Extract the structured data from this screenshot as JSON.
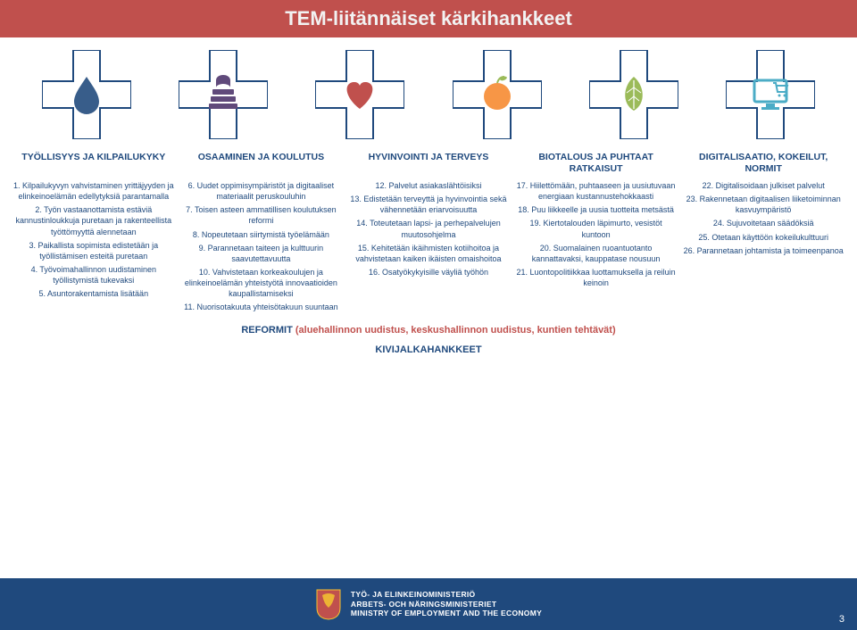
{
  "title": "TEM-liitännäiset kärkihankkeet",
  "colors": {
    "titlebar": "#c0504d",
    "footer": "#1F497D",
    "text": "#1F497D",
    "icon_outline": "#1F497D",
    "icon1": "#385d8a",
    "icon2": "#604a7b",
    "icon3": "#c0504d",
    "icon4": "#f79646",
    "icon5": "#9bbb59",
    "icon6": "#4bacc6"
  },
  "icons": [
    {
      "name": "drop-icon"
    },
    {
      "name": "books-icon"
    },
    {
      "name": "heart-icon"
    },
    {
      "name": "apple-icon"
    },
    {
      "name": "leaf-icon"
    },
    {
      "name": "monitor-cart-icon"
    }
  ],
  "columns": [
    {
      "title": "TYÖLLISYYS JA KILPAILUKYKY",
      "items": [
        "1. Kilpailukyvyn vahvistaminen yrittäjyyden ja elinkeinoelämän edellytyksiä parantamalla",
        "2. Työn vastaanottamista estäviä kannustinloukkuja puretaan ja rakenteellista työttömyyttä alennetaan",
        "3. Paikallista sopimista edistetään ja työllistämisen esteitä puretaan",
        "4. Työvoimahallinnon uudistaminen työllistymistä tukevaksi",
        "5. Asuntorakentamista lisätään"
      ]
    },
    {
      "title": "OSAAMINEN JA KOULUTUS",
      "items": [
        "6. Uudet oppimisympäristöt ja digitaaliset materiaalit peruskouluhin",
        "7. Toisen asteen ammatillisen koulutuksen reformi",
        "8. Nopeutetaan siirtymistä työelämään",
        "9. Parannetaan taiteen ja kulttuurin saavutettavuutta",
        "10. Vahvistetaan korkeakoulujen ja elinkeinoelämän yhteistyötä innovaatioiden kaupallistamiseksi",
        "11. Nuorisotakuuta yhteisötakuun suuntaan"
      ]
    },
    {
      "title": "HYVINVOINTI JA TERVEYS",
      "items": [
        "12. Palvelut asiakaslähtöisiksi",
        "13. Edistetään terveyttä ja hyvinvointia sekä vähennetään eriarvoisuutta",
        "14. Toteutetaan lapsi- ja perhepalvelujen muutosohjelma",
        "15. Kehitetään ikäihmisten kotiihoitoa ja vahvistetaan kaiken ikäisten omaishoitoa",
        "16. Osatyökykyisille väyliä työhön"
      ]
    },
    {
      "title": "BIOTALOUS JA PUHTAAT RATKAISUT",
      "items": [
        "17. Hiilettömään, puhtaaseen ja uusiutuvaan energiaan kustannustehokkaasti",
        "18. Puu liikkeelle ja uusia tuotteita metsästä",
        "19. Kiertotalouden läpimurto, vesistöt kuntoon",
        "20. Suomalainen ruoantuotanto kannattavaksi, kauppatase nousuun",
        "21. Luontopolitiikkaa luottamuksella ja reiluin keinoin"
      ]
    },
    {
      "title": "DIGITALISAATIO, KOKEILUT, NORMIT",
      "items": [
        "22. Digitalisoidaan julkiset palvelut",
        "23. Rakennetaan digitaalisen liiketoiminnan kasvuympäristö",
        "24. Sujuvoitetaan säädöksiä",
        "25. Otetaan käyttöön kokeilukulttuuri",
        "26. Parannetaan johtamista ja toimeenpanoa"
      ]
    }
  ],
  "reformit_label": "REFORMIT",
  "reformit_text": " (aluehallinnon uudistus, keskushallinnon uudistus, kuntien tehtävät)",
  "kivi": "KIVIJALKAHANKKEET",
  "footer": {
    "line1": "TYÖ- JA ELINKEINOMINISTERIÖ",
    "line2": "ARBETS- OCH NÄRINGSMINISTERIET",
    "line3": "MINISTRY OF EMPLOYMENT AND THE ECONOMY"
  },
  "page_number": "3"
}
